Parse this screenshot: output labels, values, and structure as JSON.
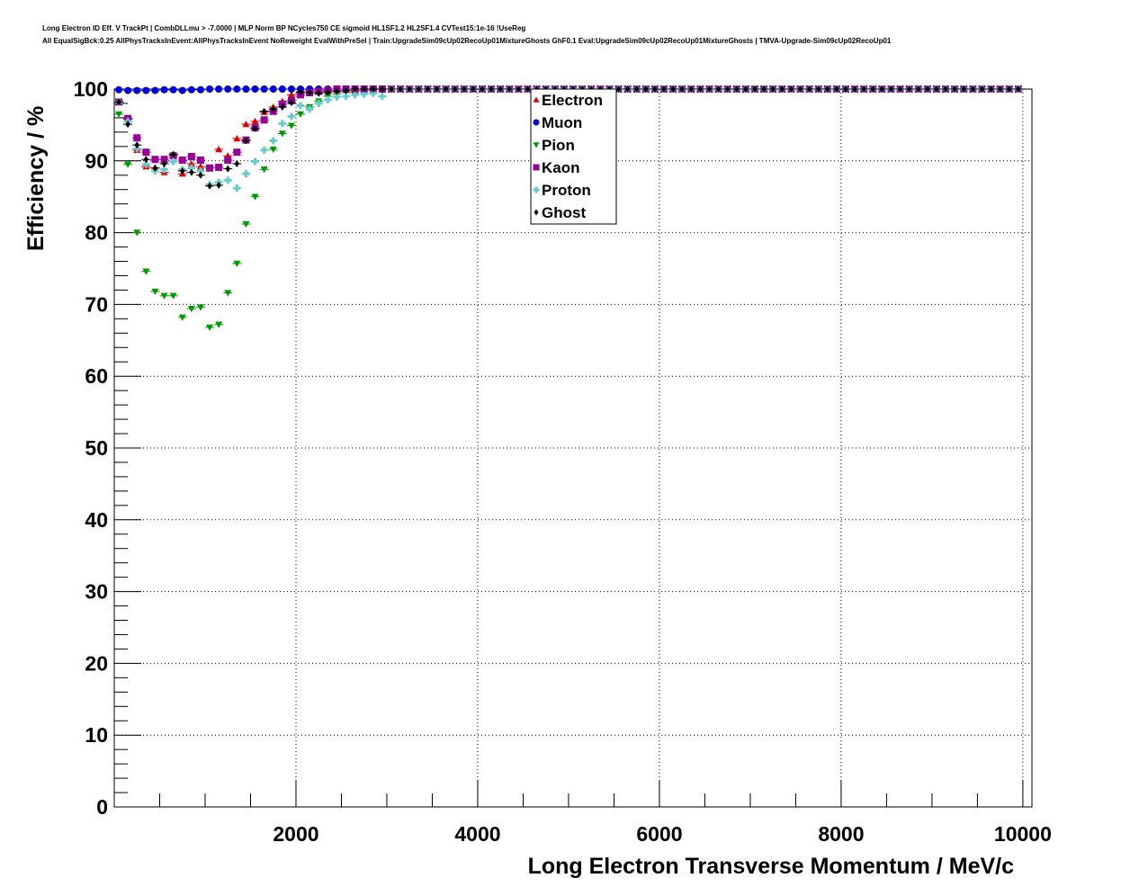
{
  "title_line1": "Long Electron ID Eff. V TrackPt | CombDLLmu > -7.0000 | MLP Norm BP NCycles750 CE sigmoid HL1SF1.2 HL2SF1.4 CVTest15:1e-16 !UseReg",
  "title_line2": "All EqualSigBck:0.25 AllPhysTracksInEvent:AllPhysTracksInEvent NoReweight EvalWithPreSel | Train:UpgradeSim09cUp02RecoUp01MixtureGhosts GhF0.1 Eval:UpgradeSim09cUp02RecoUp01MixtureGhosts | TMVA-Upgrade-Sim09cUp02RecoUp01",
  "chart_data": {
    "type": "scatter",
    "xlabel": "Long Electron Transverse Momentum / MeV/c",
    "ylabel": "Efficiency / %",
    "xlim": [
      0,
      10100
    ],
    "ylim": [
      0,
      100
    ],
    "xticks": [
      2000,
      4000,
      6000,
      8000,
      10000
    ],
    "yticks": [
      0,
      10,
      20,
      30,
      40,
      50,
      60,
      70,
      80,
      90,
      100
    ],
    "grid": true,
    "legend_position": "top-center",
    "x_bin_start": 50,
    "x_bin_width": 100,
    "series": [
      {
        "name": "Electron",
        "color": "#dd0000",
        "marker": "triangle-up",
        "values": [
          98.3,
          95.8,
          91.5,
          89.2,
          89.0,
          88.4,
          90.9,
          88.2,
          89.6,
          89.2,
          89.0,
          91.6,
          90.7,
          93.1,
          95.1,
          95.5,
          96.8,
          97.5,
          98.3,
          99.2,
          99.5,
          99.8,
          99.6,
          99.8,
          100,
          100,
          99.8,
          100,
          100,
          100,
          100,
          100,
          100,
          100,
          100,
          100,
          100,
          100,
          100,
          100,
          100,
          100,
          100,
          100,
          100,
          100,
          100,
          100,
          100,
          100,
          100,
          100,
          100,
          100,
          100,
          100,
          100,
          100,
          100,
          100,
          100,
          100,
          100,
          100,
          100,
          100,
          100,
          100,
          100,
          100,
          100,
          100,
          100,
          100,
          100,
          100,
          100,
          100,
          100,
          100,
          100,
          100,
          100,
          100,
          100,
          100,
          100,
          100,
          100,
          100,
          100,
          100,
          100,
          100,
          100,
          100,
          100,
          100,
          100,
          100
        ]
      },
      {
        "name": "Muon",
        "color": "#0000dd",
        "marker": "circle",
        "values": [
          99.9,
          99.8,
          99.8,
          99.8,
          99.8,
          99.9,
          99.9,
          99.8,
          99.9,
          99.9,
          100,
          100,
          100,
          100,
          100,
          100,
          100,
          100,
          100,
          100,
          100,
          100,
          100,
          100,
          100,
          100,
          100,
          100,
          100,
          100,
          100,
          100,
          100,
          100,
          100,
          100,
          100,
          100,
          100,
          100,
          100,
          100,
          100,
          100,
          100,
          100,
          100,
          100,
          100,
          100,
          100,
          100,
          100,
          100,
          100,
          100,
          100,
          100,
          100,
          100,
          100,
          100,
          100,
          100,
          100,
          100,
          100,
          100,
          100,
          100,
          100,
          100,
          100,
          100,
          100,
          100,
          100,
          100,
          100,
          100,
          100,
          100,
          100,
          100,
          100,
          100,
          100,
          100,
          100,
          100,
          100,
          100,
          100,
          100,
          100,
          100,
          100,
          100,
          100,
          100
        ]
      },
      {
        "name": "Pion",
        "color": "#009900",
        "marker": "triangle-down",
        "values": [
          96.5,
          89.5,
          80.0,
          74.6,
          71.8,
          71.2,
          71.2,
          68.2,
          69.4,
          69.6,
          66.8,
          67.2,
          71.6,
          75.7,
          81.2,
          85.0,
          88.8,
          91.6,
          93.8,
          94.9,
          96.5,
          97.5,
          98.3,
          99.0,
          99.3,
          99.5,
          99.6,
          99.8,
          99.9,
          100,
          100,
          100,
          100,
          100,
          100,
          100,
          100,
          100,
          100,
          100,
          100,
          100,
          100,
          100,
          100,
          100,
          100,
          100,
          100,
          100,
          100,
          100,
          100,
          100,
          100,
          100,
          100,
          100,
          100,
          100,
          100,
          100,
          100,
          100,
          100,
          100,
          100,
          100,
          100,
          100,
          100,
          100,
          100,
          100,
          100,
          100,
          100,
          100,
          100,
          100,
          100,
          100,
          100,
          100,
          100,
          100,
          100,
          100,
          100,
          100,
          100,
          100,
          100,
          100,
          100,
          100,
          100,
          100,
          100,
          100
        ]
      },
      {
        "name": "Kaon",
        "color": "#990099",
        "marker": "square",
        "values": [
          98.2,
          95.9,
          93.2,
          91.2,
          90.2,
          90.2,
          90.7,
          90.1,
          90.6,
          90.1,
          89.0,
          89.1,
          90.1,
          91.2,
          92.9,
          94.6,
          95.7,
          96.9,
          97.9,
          98.4,
          99.2,
          99.5,
          99.7,
          99.8,
          100,
          100,
          100,
          100,
          100,
          100,
          100,
          100,
          100,
          100,
          100,
          100,
          100,
          100,
          100,
          100,
          100,
          100,
          100,
          100,
          100,
          100,
          100,
          100,
          100,
          100,
          100,
          100,
          100,
          100,
          100,
          100,
          100,
          100,
          100,
          100,
          100,
          100,
          100,
          100,
          100,
          100,
          100,
          100,
          100,
          100,
          100,
          100,
          100,
          100,
          100,
          100,
          100,
          100,
          100,
          100,
          100,
          100,
          100,
          100,
          100,
          100,
          100,
          100,
          100,
          100,
          100,
          100,
          100,
          100,
          100,
          100,
          100,
          100,
          100,
          100
        ]
      },
      {
        "name": "Proton",
        "color": "#66cccc",
        "marker": "cross",
        "values": [
          98.2,
          95.5,
          91.7,
          89.5,
          88.6,
          88.8,
          89.9,
          88.8,
          89.0,
          88.6,
          86.7,
          87.0,
          87.3,
          86.2,
          88.2,
          89.9,
          91.5,
          92.8,
          95.2,
          96.2,
          97.7,
          97.2,
          98.0,
          98.5,
          98.9,
          99.0,
          99.2,
          99.3,
          99.4,
          99.0,
          100,
          100,
          100,
          100,
          100,
          100,
          100,
          100,
          100,
          100,
          100,
          100,
          100,
          100,
          100,
          100,
          100,
          100,
          100,
          100,
          100,
          100,
          100,
          100,
          100,
          100,
          100,
          100,
          100,
          100,
          100,
          100,
          100,
          100,
          100,
          100,
          100,
          100,
          100,
          100,
          100,
          100,
          100,
          100,
          100,
          100,
          100,
          100,
          100,
          100,
          100,
          100,
          100,
          100,
          100,
          100,
          100,
          100,
          100,
          100,
          100,
          100,
          100,
          100,
          100,
          100,
          100,
          100,
          100,
          100
        ]
      },
      {
        "name": "Ghost",
        "color": "#000000",
        "marker": "diamond",
        "values": [
          98.2,
          95.1,
          92.2,
          90.2,
          89.0,
          89.6,
          90.9,
          88.6,
          88.4,
          88.0,
          86.5,
          86.6,
          88.9,
          89.6,
          92.8,
          94.5,
          96.9,
          97.2,
          97.5,
          98.1,
          99.6,
          99.5,
          99.4,
          99.6,
          99.7,
          99.8,
          100,
          100,
          100,
          100,
          100,
          100,
          100,
          100,
          100,
          100,
          100,
          100,
          100,
          100,
          100,
          100,
          100,
          100,
          100,
          100,
          100,
          100,
          100,
          100,
          100,
          100,
          100,
          100,
          100,
          100,
          100,
          100,
          100,
          100,
          100,
          100,
          100,
          100,
          100,
          100,
          100,
          100,
          100,
          100,
          100,
          100,
          100,
          100,
          100,
          100,
          100,
          100,
          100,
          100,
          100,
          100,
          100,
          100,
          100,
          100,
          100,
          100,
          100,
          100,
          100,
          100,
          100,
          100,
          100,
          100,
          100,
          100,
          100,
          100
        ]
      }
    ]
  }
}
